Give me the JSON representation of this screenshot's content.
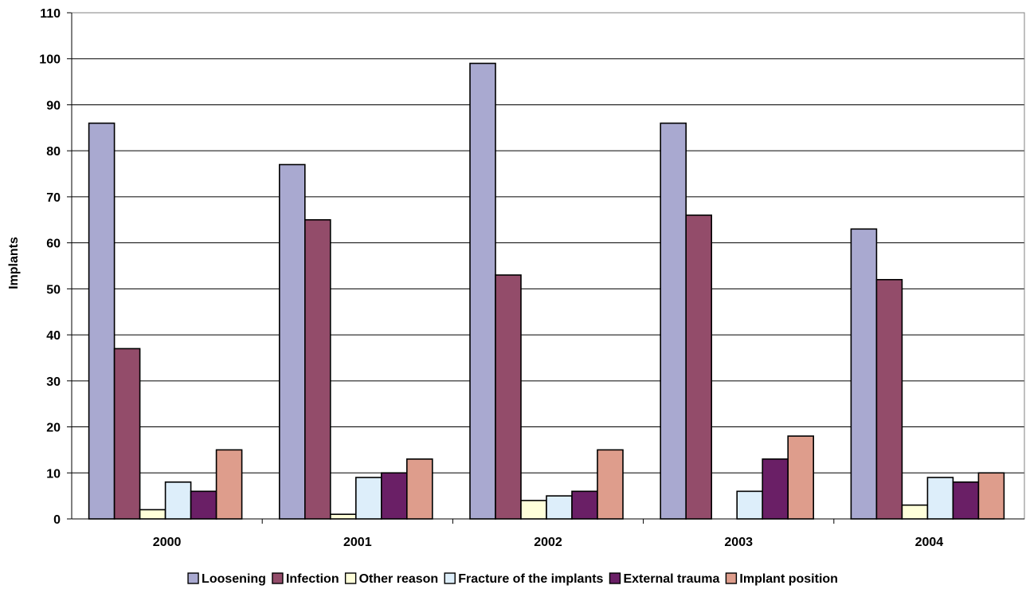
{
  "chart_data": {
    "type": "bar",
    "title": "",
    "xlabel": "",
    "ylabel": "Implants",
    "ylim": [
      0,
      110
    ],
    "yticks": [
      0,
      10,
      20,
      30,
      40,
      50,
      60,
      70,
      80,
      90,
      100,
      110
    ],
    "grid": true,
    "legend_position": "bottom",
    "categories": [
      "2000",
      "2001",
      "2002",
      "2003",
      "2004"
    ],
    "series": [
      {
        "name": "Loosening",
        "color": "#A9A9D0",
        "values": [
          86,
          77,
          99,
          86,
          63
        ]
      },
      {
        "name": "Infection",
        "color": "#934C6A",
        "values": [
          37,
          65,
          53,
          66,
          52
        ]
      },
      {
        "name": "Other reason",
        "color": "#FFFFDA",
        "values": [
          2,
          1,
          4,
          0,
          3
        ]
      },
      {
        "name": "Fracture of the implants",
        "color": "#DDEEFA",
        "values": [
          8,
          9,
          5,
          6,
          9
        ]
      },
      {
        "name": "External trauma",
        "color": "#6A1F66",
        "values": [
          6,
          10,
          6,
          13,
          8
        ]
      },
      {
        "name": "Implant position",
        "color": "#DE9D8C",
        "values": [
          15,
          13,
          15,
          18,
          10
        ]
      }
    ]
  }
}
